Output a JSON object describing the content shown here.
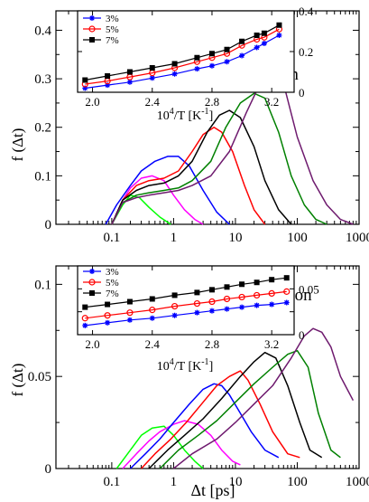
{
  "colors": {
    "blue": "#0000ff",
    "red": "#ff0000",
    "black": "#000000",
    "green": "#008000",
    "purple": "#6e1a6e",
    "magenta": "#ff00ff",
    "lime": "#00ff00",
    "frame": "#000000"
  },
  "chart_data": [
    {
      "type": "line",
      "panel": "top",
      "annotation": "oxygen",
      "xlabel": "",
      "ylabel": "f (Δt)",
      "xscale": "log",
      "xlim": [
        0.0125,
        1000
      ],
      "ylim": [
        0,
        0.44
      ],
      "xticks": [
        0.1,
        1,
        10,
        100,
        1000
      ],
      "xtick_labels": [
        "0.1",
        "1",
        "10",
        "100",
        "1000"
      ],
      "yticks": [
        0,
        0.1,
        0.2,
        0.3,
        0.4
      ],
      "ytick_labels": [
        "0",
        "0.1",
        "0.2",
        "0.3",
        "0.4"
      ],
      "series": [
        {
          "color_key": "lime",
          "x": [
            0.1,
            0.15,
            0.2,
            0.28,
            0.4,
            0.6,
            0.9
          ],
          "y": [
            0.0,
            0.04,
            0.06,
            0.055,
            0.035,
            0.015,
            0.0
          ]
        },
        {
          "color_key": "magenta",
          "x": [
            0.1,
            0.15,
            0.2,
            0.3,
            0.45,
            0.7,
            1.0,
            1.5,
            2.2,
            3.0
          ],
          "y": [
            0.0,
            0.05,
            0.075,
            0.095,
            0.1,
            0.09,
            0.06,
            0.03,
            0.01,
            0.0
          ]
        },
        {
          "color_key": "blue",
          "x": [
            0.08,
            0.12,
            0.2,
            0.3,
            0.5,
            0.8,
            1.2,
            1.8,
            3.0,
            5.0,
            8.0
          ],
          "y": [
            0.0,
            0.04,
            0.08,
            0.11,
            0.13,
            0.14,
            0.14,
            0.12,
            0.07,
            0.025,
            0.0
          ]
        },
        {
          "color_key": "red",
          "x": [
            0.1,
            0.15,
            0.25,
            0.4,
            0.7,
            1.2,
            2.0,
            3.0,
            4.5,
            6.0,
            9.0,
            14,
            20,
            30
          ],
          "y": [
            0.0,
            0.05,
            0.08,
            0.09,
            0.095,
            0.11,
            0.15,
            0.185,
            0.2,
            0.19,
            0.15,
            0.08,
            0.03,
            0.0
          ]
        },
        {
          "color_key": "black",
          "x": [
            0.1,
            0.15,
            0.25,
            0.4,
            0.7,
            1.2,
            2.0,
            3.5,
            5.5,
            8.0,
            12,
            20,
            30,
            50,
            80
          ],
          "y": [
            0.0,
            0.05,
            0.07,
            0.08,
            0.085,
            0.1,
            0.13,
            0.19,
            0.225,
            0.235,
            0.22,
            0.16,
            0.09,
            0.03,
            0.0
          ]
        },
        {
          "color_key": "green",
          "x": [
            0.1,
            0.15,
            0.25,
            0.4,
            0.7,
            1.2,
            2.0,
            4.0,
            7.0,
            12,
            20,
            30,
            50,
            80,
            130,
            200,
            300
          ],
          "y": [
            0.0,
            0.045,
            0.06,
            0.065,
            0.07,
            0.075,
            0.09,
            0.13,
            0.2,
            0.25,
            0.27,
            0.26,
            0.19,
            0.1,
            0.04,
            0.01,
            0.0
          ]
        },
        {
          "color_key": "purple",
          "x": [
            0.1,
            0.15,
            0.25,
            0.4,
            0.7,
            1.2,
            2.0,
            4.0,
            8.0,
            15,
            25,
            40,
            60,
            100,
            180,
            300,
            500,
            800
          ],
          "y": [
            0.0,
            0.045,
            0.055,
            0.06,
            0.065,
            0.07,
            0.08,
            0.1,
            0.15,
            0.23,
            0.29,
            0.31,
            0.29,
            0.18,
            0.09,
            0.04,
            0.01,
            0.0
          ]
        }
      ],
      "inset": {
        "xlabel": "10^4/T [K^-1]",
        "xlim": [
          1.9,
          3.35
        ],
        "ylim": [
          0.0,
          0.4
        ],
        "xticks": [
          2.0,
          2.4,
          2.8,
          3.2
        ],
        "xtick_labels": [
          "2.0",
          "2.4",
          "2.8",
          "3.2"
        ],
        "yticks": [
          0,
          0.2,
          0.4
        ],
        "ytick_labels": [
          "0",
          "0.2",
          "0.4"
        ],
        "series": [
          {
            "name": "3%",
            "marker": "star",
            "color_key": "blue",
            "x": [
              1.95,
              2.1,
              2.25,
              2.4,
              2.55,
              2.7,
              2.8,
              2.9,
              3.0,
              3.1,
              3.15,
              3.25
            ],
            "y": [
              0.02,
              0.035,
              0.05,
              0.07,
              0.09,
              0.115,
              0.13,
              0.15,
              0.18,
              0.22,
              0.24,
              0.28
            ]
          },
          {
            "name": "5%",
            "marker": "circle",
            "color_key": "red",
            "x": [
              1.95,
              2.1,
              2.25,
              2.4,
              2.55,
              2.7,
              2.8,
              2.9,
              3.0,
              3.1,
              3.15,
              3.25
            ],
            "y": [
              0.04,
              0.055,
              0.075,
              0.095,
              0.12,
              0.15,
              0.17,
              0.19,
              0.23,
              0.26,
              0.27,
              0.31
            ]
          },
          {
            "name": "7%",
            "marker": "square",
            "color_key": "black",
            "x": [
              1.95,
              2.1,
              2.25,
              2.4,
              2.55,
              2.7,
              2.8,
              2.9,
              3.0,
              3.1,
              3.15,
              3.25
            ],
            "y": [
              0.06,
              0.08,
              0.1,
              0.12,
              0.14,
              0.17,
              0.19,
              0.21,
              0.25,
              0.28,
              0.29,
              0.33
            ]
          }
        ]
      }
    },
    {
      "type": "line",
      "panel": "bottom",
      "annotation": "silicon",
      "xlabel": "Δt [ps]",
      "ylabel": "f (Δt)",
      "xscale": "log",
      "xlim": [
        0.0125,
        1000
      ],
      "ylim": [
        0,
        0.11
      ],
      "xticks": [
        0.1,
        1,
        10,
        100,
        1000
      ],
      "xtick_labels": [
        "0.1",
        "1",
        "10",
        "100",
        "1000"
      ],
      "yticks": [
        0,
        0.05,
        0.1
      ],
      "ytick_labels": [
        "0",
        "0.05",
        "0.1"
      ],
      "series": [
        {
          "color_key": "lime",
          "x": [
            0.12,
            0.2,
            0.3,
            0.45,
            0.7,
            1.0,
            1.5,
            2.2,
            3.0
          ],
          "y": [
            0.0,
            0.01,
            0.018,
            0.022,
            0.023,
            0.018,
            0.01,
            0.004,
            0.0
          ]
        },
        {
          "color_key": "magenta",
          "x": [
            0.15,
            0.25,
            0.4,
            0.6,
            1.0,
            1.5,
            2.5,
            4.0,
            6.0,
            9.0,
            12
          ],
          "y": [
            0.0,
            0.008,
            0.015,
            0.02,
            0.024,
            0.026,
            0.024,
            0.018,
            0.01,
            0.004,
            0.002
          ]
        },
        {
          "color_key": "blue",
          "x": [
            0.2,
            0.35,
            0.6,
            1.0,
            1.8,
            3.0,
            4.5,
            6.0,
            8.0,
            12,
            18,
            30,
            50
          ],
          "y": [
            0.0,
            0.008,
            0.016,
            0.025,
            0.035,
            0.043,
            0.046,
            0.045,
            0.04,
            0.03,
            0.02,
            0.01,
            0.006
          ]
        },
        {
          "color_key": "red",
          "x": [
            0.3,
            0.5,
            0.9,
            1.6,
            3.0,
            5.0,
            8.0,
            12,
            16,
            25,
            40,
            70,
            110
          ],
          "y": [
            0.0,
            0.008,
            0.016,
            0.025,
            0.036,
            0.045,
            0.05,
            0.053,
            0.048,
            0.035,
            0.02,
            0.008,
            0.006
          ]
        },
        {
          "color_key": "black",
          "x": [
            0.4,
            0.8,
            1.5,
            3.0,
            6.0,
            12,
            20,
            30,
            45,
            70,
            110,
            160,
            250
          ],
          "y": [
            0.0,
            0.01,
            0.018,
            0.027,
            0.038,
            0.05,
            0.058,
            0.063,
            0.06,
            0.045,
            0.025,
            0.01,
            0.006
          ]
        },
        {
          "color_key": "green",
          "x": [
            0.6,
            1.2,
            2.5,
            5.0,
            10,
            20,
            40,
            70,
            100,
            150,
            220,
            350,
            500
          ],
          "y": [
            0.0,
            0.01,
            0.018,
            0.026,
            0.036,
            0.046,
            0.055,
            0.062,
            0.064,
            0.055,
            0.03,
            0.01,
            0.006
          ]
        },
        {
          "color_key": "purple",
          "x": [
            1.0,
            2.0,
            5.0,
            10,
            20,
            40,
            80,
            130,
            180,
            250,
            350,
            500,
            800
          ],
          "y": [
            0.0,
            0.008,
            0.016,
            0.025,
            0.035,
            0.045,
            0.06,
            0.072,
            0.076,
            0.074,
            0.066,
            0.05,
            0.037
          ]
        }
      ],
      "inset": {
        "xlabel": "10^4/T [K^-1]",
        "xlim": [
          1.9,
          3.35
        ],
        "ylim": [
          0.0,
          0.075
        ],
        "xticks": [
          2.0,
          2.4,
          2.8,
          3.2
        ],
        "xtick_labels": [
          "2.0",
          "2.4",
          "2.8",
          "3.2"
        ],
        "yticks": [
          0,
          0.025,
          0.05
        ],
        "ytick_labels": [
          "0",
          "",
          "0.05"
        ],
        "series": [
          {
            "name": "3%",
            "marker": "star",
            "color_key": "blue",
            "x": [
              1.95,
              2.1,
              2.25,
              2.4,
              2.55,
              2.7,
              2.8,
              2.9,
              3.0,
              3.1,
              3.2,
              3.3
            ],
            "y": [
              0.01,
              0.013,
              0.016,
              0.018,
              0.021,
              0.024,
              0.026,
              0.028,
              0.03,
              0.032,
              0.033,
              0.035
            ]
          },
          {
            "name": "5%",
            "marker": "circle",
            "color_key": "red",
            "x": [
              1.95,
              2.1,
              2.25,
              2.4,
              2.55,
              2.7,
              2.8,
              2.9,
              3.0,
              3.1,
              3.2,
              3.3
            ],
            "y": [
              0.018,
              0.021,
              0.024,
              0.027,
              0.031,
              0.034,
              0.036,
              0.039,
              0.041,
              0.043,
              0.045,
              0.047
            ]
          },
          {
            "name": "7%",
            "marker": "square",
            "color_key": "black",
            "x": [
              1.95,
              2.1,
              2.25,
              2.4,
              2.55,
              2.7,
              2.8,
              2.9,
              3.0,
              3.1,
              3.2,
              3.3
            ],
            "y": [
              0.03,
              0.033,
              0.036,
              0.039,
              0.043,
              0.046,
              0.049,
              0.052,
              0.055,
              0.057,
              0.06,
              0.062
            ]
          }
        ]
      }
    }
  ]
}
